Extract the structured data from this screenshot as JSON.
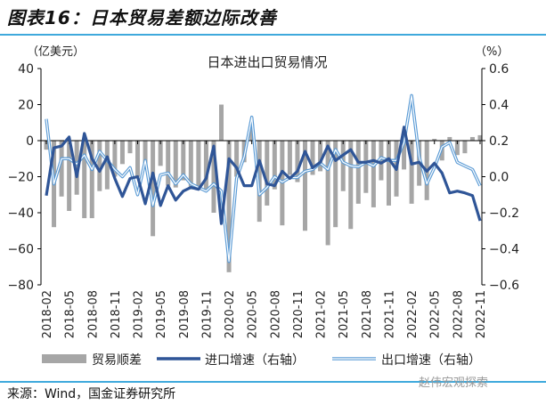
{
  "header": {
    "title": "图表16：日本贸易差额边际改善"
  },
  "footer": {
    "source": "来源：Wind，国金证券研究所",
    "watermark": "赵伟宏观探索"
  },
  "colors": {
    "bar": "#a6a6a6",
    "import": "#2f5597",
    "export": "#5b9bd5",
    "rule": "#3fa9dc"
  },
  "chart_data": {
    "type": "bar+line",
    "title": "日本进出口贸易情况",
    "ylabel_left": "（亿美元）",
    "ylabel_right": "（%）",
    "ylim_left": [
      -80,
      40
    ],
    "ylim_right": [
      -0.6,
      0.6
    ],
    "yticks_left": [
      "40",
      "20",
      "0",
      "−20",
      "−40",
      "−60",
      "−80"
    ],
    "yticks_right": [
      "0.6",
      "0.4",
      "0.2",
      "0.0",
      "−0.2",
      "−0.4",
      "−0.6"
    ],
    "xtick_labels": [
      "2018-02",
      "2018-05",
      "2018-08",
      "2018-11",
      "2019-02",
      "2019-05",
      "2019-08",
      "2019-11",
      "2020-02",
      "2020-05",
      "2020-08",
      "2020-11",
      "2021-02",
      "2021-05",
      "2021-08",
      "2021-11",
      "2022-02",
      "2022-05",
      "2022-08",
      "2022-11"
    ],
    "x_start": "2018-02",
    "x_end": "2022-11",
    "legend_position": "bottom",
    "series": [
      {
        "name": "贸易顺差",
        "type": "bar",
        "axis": "left",
        "values": [
          -5,
          -48,
          -31,
          -39,
          -30,
          -43,
          -43,
          -28,
          -27,
          -20,
          -13,
          -7,
          -20,
          -15,
          -53,
          -14,
          -25,
          -26,
          -22,
          -27,
          -27,
          -28,
          -40,
          20,
          -73,
          -20,
          -12,
          9,
          -45,
          -36,
          -27,
          -47,
          -19,
          -23,
          -50,
          -19,
          -17,
          -58,
          -48,
          -28,
          -49,
          -35,
          -29,
          -37,
          -22,
          -36,
          -31,
          -16,
          -35,
          -25,
          -33,
          1,
          -11,
          2,
          -8,
          -7,
          2,
          3
        ]
      },
      {
        "name": "进口增速（右轴）",
        "type": "line",
        "axis": "right",
        "values": [
          -0.105,
          0.16,
          0.17,
          0.22,
          0.0,
          0.24,
          0.1,
          0.03,
          0.11,
          -0.01,
          -0.11,
          -0.01,
          0.0,
          -0.15,
          0.02,
          -0.16,
          -0.05,
          -0.13,
          -0.08,
          -0.06,
          -0.07,
          -0.01,
          0.17,
          -0.26,
          0.1,
          0.05,
          -0.05,
          -0.05,
          0.09,
          -0.04,
          -0.05,
          0.03,
          -0.01,
          0.03,
          0.14,
          0.05,
          0.08,
          0.17,
          0.09,
          0.12,
          0.15,
          0.08,
          0.08,
          0.09,
          0.075,
          0.1,
          0.04,
          0.275,
          0.07,
          0.08,
          0.03,
          0.075,
          0.02,
          -0.09,
          -0.08,
          -0.09,
          -0.105,
          -0.245
        ]
      },
      {
        "name": "出口增速（右轴）",
        "type": "line",
        "axis": "right",
        "values": [
          0.32,
          -0.04,
          0.1,
          0.1,
          0.07,
          0.12,
          0.04,
          0.14,
          0.09,
          0.04,
          0.0,
          0.05,
          -0.1,
          0.09,
          -0.16,
          0.01,
          0.02,
          -0.04,
          0.01,
          -0.04,
          -0.06,
          -0.08,
          -0.04,
          -0.08,
          -0.47,
          -0.01,
          0.11,
          0.33,
          -0.1,
          -0.06,
          0.0,
          -0.03,
          -0.005,
          -0.005,
          0.03,
          0.04,
          0.075,
          0.04,
          0.15,
          0.08,
          0.06,
          0.055,
          0.08,
          0.06,
          0.105,
          0.09,
          0.09,
          0.19,
          0.45,
          0.11,
          -0.04,
          0.05,
          0.165,
          0.19,
          0.08,
          0.06,
          0.04,
          -0.05
        ]
      }
    ]
  }
}
